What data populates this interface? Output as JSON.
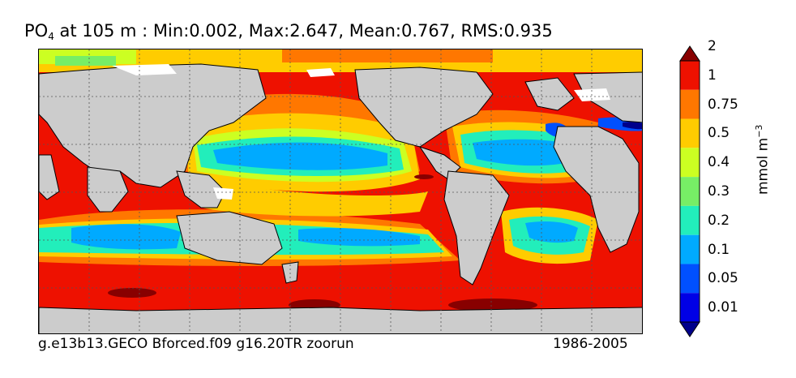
{
  "title": {
    "var_main": "PO",
    "var_sub": "4",
    "rest": " at 105 m : Min:0.002, Max:2.647, Mean:0.767, RMS:0.935"
  },
  "footer": {
    "left": "g.e13b13.GECO Bforced.f09 g16.20TR zoorun",
    "right": "1986-2005"
  },
  "colorbar": {
    "unit_main": "mmol m",
    "unit_exp": "−3",
    "tick_labels": [
      "0.01",
      "0.05",
      "0.1",
      "0.2",
      "0.3",
      "0.4",
      "0.5",
      "0.75",
      "1",
      "2"
    ],
    "colors": [
      "#00008b",
      "#0000e6",
      "#0050ff",
      "#00aaff",
      "#22eebb",
      "#77ee66",
      "#ccff22",
      "#ffcc00",
      "#ff7700",
      "#ee1100",
      "#880000"
    ],
    "land_color": "#cccccc"
  },
  "map": {
    "contour_levels": [
      0.01,
      0.05,
      0.1,
      0.2,
      0.3,
      0.4,
      0.5,
      0.75,
      1,
      2
    ],
    "grid_lines": "dotted"
  }
}
